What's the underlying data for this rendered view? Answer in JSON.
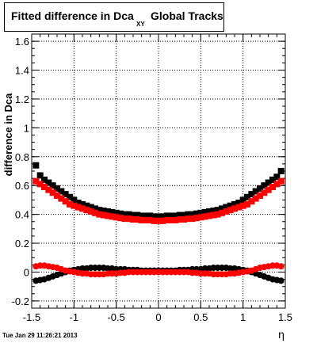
{
  "title": {
    "main": "Fitted difference in Dca",
    "subscript": "XY",
    "suffix": "Global Tracks"
  },
  "timestamp": "Tue Jan 29 11:26:21 2013",
  "chart_data": {
    "type": "scatter",
    "title": "Fitted difference in Dca XY Global Tracks",
    "xlabel": "η",
    "ylabel": "difference in Dca",
    "xlim": [
      -1.5,
      1.5
    ],
    "ylim": [
      -0.25,
      1.65
    ],
    "x_ticks": [
      -1.5,
      -1,
      -0.5,
      0,
      0.5,
      1,
      1.5
    ],
    "x_tick_labels": [
      "-1.5",
      "-1",
      "-0.5",
      "0",
      "0.5",
      "1",
      "1.5"
    ],
    "y_ticks": [
      -0.2,
      0,
      0.2,
      0.4,
      0.6,
      0.8,
      1,
      1.2,
      1.4,
      1.6
    ],
    "y_tick_labels": [
      "-0.2",
      "0",
      "0.2",
      "0.4",
      "0.6",
      "0.8",
      "1",
      "1.2",
      "1.4",
      "1.6"
    ],
    "grid": true,
    "colors": {
      "series_black": "#000000",
      "series_red": "#ff0000"
    },
    "series": [
      {
        "color": "#000000",
        "marker": "square",
        "curve": "upper",
        "x": [
          -1.45,
          -1.4,
          -1.35,
          -1.3,
          -1.25,
          -1.2,
          -1.15,
          -1.1,
          -1.05,
          -1.0,
          -0.95,
          -0.9,
          -0.85,
          -0.8,
          -0.75,
          -0.7,
          -0.65,
          -0.6,
          -0.55,
          -0.5,
          -0.45,
          -0.4,
          -0.35,
          -0.3,
          -0.25,
          -0.2,
          -0.15,
          -0.1,
          -0.05,
          0.0,
          0.05,
          0.1,
          0.15,
          0.2,
          0.25,
          0.3,
          0.35,
          0.4,
          0.45,
          0.5,
          0.55,
          0.6,
          0.65,
          0.7,
          0.75,
          0.8,
          0.85,
          0.9,
          0.95,
          1.0,
          1.05,
          1.1,
          1.15,
          1.2,
          1.25,
          1.3,
          1.35,
          1.4,
          1.45
        ],
        "y": [
          0.74,
          0.67,
          0.64,
          0.62,
          0.6,
          0.58,
          0.56,
          0.54,
          0.52,
          0.5,
          0.48,
          0.47,
          0.46,
          0.45,
          0.44,
          0.43,
          0.425,
          0.42,
          0.415,
          0.41,
          0.405,
          0.4,
          0.4,
          0.395,
          0.395,
          0.39,
          0.39,
          0.39,
          0.385,
          0.385,
          0.385,
          0.39,
          0.39,
          0.39,
          0.395,
          0.395,
          0.4,
          0.4,
          0.405,
          0.41,
          0.415,
          0.42,
          0.425,
          0.43,
          0.44,
          0.45,
          0.46,
          0.47,
          0.48,
          0.5,
          0.52,
          0.54,
          0.56,
          0.58,
          0.6,
          0.62,
          0.64,
          0.66,
          0.7
        ]
      },
      {
        "color": "#ff0000",
        "marker": "square",
        "curve": "upper",
        "x": [
          -1.45,
          -1.4,
          -1.35,
          -1.3,
          -1.25,
          -1.2,
          -1.15,
          -1.1,
          -1.05,
          -1.0,
          -0.95,
          -0.9,
          -0.85,
          -0.8,
          -0.75,
          -0.7,
          -0.65,
          -0.6,
          -0.55,
          -0.5,
          -0.45,
          -0.4,
          -0.35,
          -0.3,
          -0.25,
          -0.2,
          -0.15,
          -0.1,
          -0.05,
          0.0,
          0.05,
          0.1,
          0.15,
          0.2,
          0.25,
          0.3,
          0.35,
          0.4,
          0.45,
          0.5,
          0.55,
          0.6,
          0.65,
          0.7,
          0.75,
          0.8,
          0.85,
          0.9,
          0.95,
          1.0,
          1.05,
          1.1,
          1.15,
          1.2,
          1.25,
          1.3,
          1.35,
          1.4,
          1.45
        ],
        "y": [
          0.63,
          0.61,
          0.59,
          0.57,
          0.55,
          0.53,
          0.51,
          0.49,
          0.47,
          0.46,
          0.45,
          0.44,
          0.43,
          0.42,
          0.41,
          0.4,
          0.395,
          0.39,
          0.385,
          0.38,
          0.375,
          0.37,
          0.37,
          0.365,
          0.365,
          0.36,
          0.36,
          0.36,
          0.355,
          0.355,
          0.355,
          0.36,
          0.36,
          0.36,
          0.365,
          0.365,
          0.37,
          0.37,
          0.375,
          0.38,
          0.385,
          0.39,
          0.395,
          0.4,
          0.41,
          0.42,
          0.43,
          0.44,
          0.45,
          0.46,
          0.47,
          0.49,
          0.51,
          0.53,
          0.55,
          0.57,
          0.59,
          0.61,
          0.63
        ]
      },
      {
        "color": "#000000",
        "marker": "circle",
        "curve": "lower",
        "x": [
          -1.45,
          -1.4,
          -1.35,
          -1.3,
          -1.25,
          -1.2,
          -1.15,
          -1.1,
          -1.05,
          -1.0,
          -0.95,
          -0.9,
          -0.85,
          -0.8,
          -0.75,
          -0.7,
          -0.65,
          -0.6,
          -0.55,
          -0.5,
          -0.45,
          -0.4,
          -0.35,
          -0.3,
          -0.25,
          -0.2,
          -0.15,
          -0.1,
          -0.05,
          0.0,
          0.05,
          0.1,
          0.15,
          0.2,
          0.25,
          0.3,
          0.35,
          0.4,
          0.45,
          0.5,
          0.55,
          0.6,
          0.65,
          0.7,
          0.75,
          0.8,
          0.85,
          0.9,
          0.95,
          1.0,
          1.05,
          1.1,
          1.15,
          1.2,
          1.25,
          1.3,
          1.35,
          1.4,
          1.45
        ],
        "y": [
          -0.06,
          -0.055,
          -0.05,
          -0.04,
          -0.03,
          -0.02,
          -0.01,
          0.0,
          0.01,
          0.015,
          0.02,
          0.025,
          0.025,
          0.03,
          0.03,
          0.03,
          0.03,
          0.025,
          0.025,
          0.02,
          0.02,
          0.02,
          0.015,
          0.015,
          0.015,
          0.01,
          0.01,
          0.01,
          0.01,
          0.01,
          0.01,
          0.01,
          0.01,
          0.01,
          0.015,
          0.015,
          0.015,
          0.02,
          0.02,
          0.02,
          0.025,
          0.025,
          0.03,
          0.03,
          0.03,
          0.03,
          0.025,
          0.025,
          0.02,
          0.015,
          0.01,
          0.0,
          -0.01,
          -0.02,
          -0.03,
          -0.04,
          -0.05,
          -0.055,
          -0.06
        ]
      },
      {
        "color": "#ff0000",
        "marker": "circle",
        "curve": "lower",
        "x": [
          -1.45,
          -1.4,
          -1.35,
          -1.3,
          -1.25,
          -1.2,
          -1.15,
          -1.1,
          -1.05,
          -1.0,
          -0.95,
          -0.9,
          -0.85,
          -0.8,
          -0.75,
          -0.7,
          -0.65,
          -0.6,
          -0.55,
          -0.5,
          -0.45,
          -0.4,
          -0.35,
          -0.3,
          -0.25,
          -0.2,
          -0.15,
          -0.1,
          -0.05,
          0.0,
          0.05,
          0.1,
          0.15,
          0.2,
          0.25,
          0.3,
          0.35,
          0.4,
          0.45,
          0.5,
          0.55,
          0.6,
          0.65,
          0.7,
          0.75,
          0.8,
          0.85,
          0.9,
          0.95,
          1.0,
          1.05,
          1.1,
          1.15,
          1.2,
          1.25,
          1.3,
          1.35,
          1.4,
          1.45
        ],
        "y": [
          0.04,
          0.045,
          0.045,
          0.04,
          0.035,
          0.03,
          0.02,
          0.01,
          0.005,
          0.0,
          -0.005,
          -0.01,
          -0.01,
          -0.015,
          -0.015,
          -0.015,
          -0.015,
          -0.01,
          -0.01,
          -0.01,
          -0.005,
          -0.005,
          0.0,
          0.0,
          0.0,
          0.0,
          0.0,
          0.0,
          0.0,
          0.0,
          0.0,
          0.0,
          0.0,
          0.0,
          0.0,
          0.0,
          0.0,
          -0.005,
          -0.005,
          -0.01,
          -0.01,
          -0.01,
          -0.015,
          -0.015,
          -0.015,
          -0.015,
          -0.01,
          -0.01,
          -0.005,
          0.0,
          0.005,
          0.01,
          0.02,
          0.03,
          0.035,
          0.04,
          0.045,
          0.045,
          0.04
        ]
      }
    ]
  }
}
